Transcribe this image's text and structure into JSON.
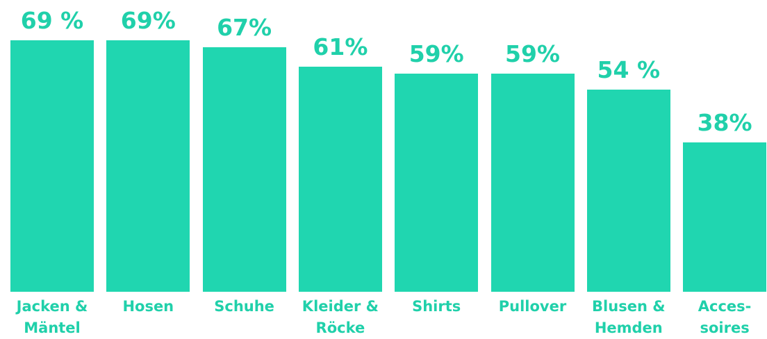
{
  "chart_data": {
    "type": "bar",
    "categories": [
      "Jacken &\nMäntel",
      "Hosen",
      "Schuhe",
      "Kleider &\nRöcke",
      "Shirts",
      "Pullover",
      "Blusen &\nHemden",
      "Acces-\nsoires"
    ],
    "values": [
      69,
      69,
      67,
      61,
      59,
      59,
      54,
      38
    ],
    "value_labels": [
      "69 %",
      "69%",
      "67%",
      "61%",
      "59%",
      "59%",
      "54 %",
      "38%"
    ],
    "color": "#20d6b0",
    "ylim": [
      -7.4,
      72
    ]
  }
}
